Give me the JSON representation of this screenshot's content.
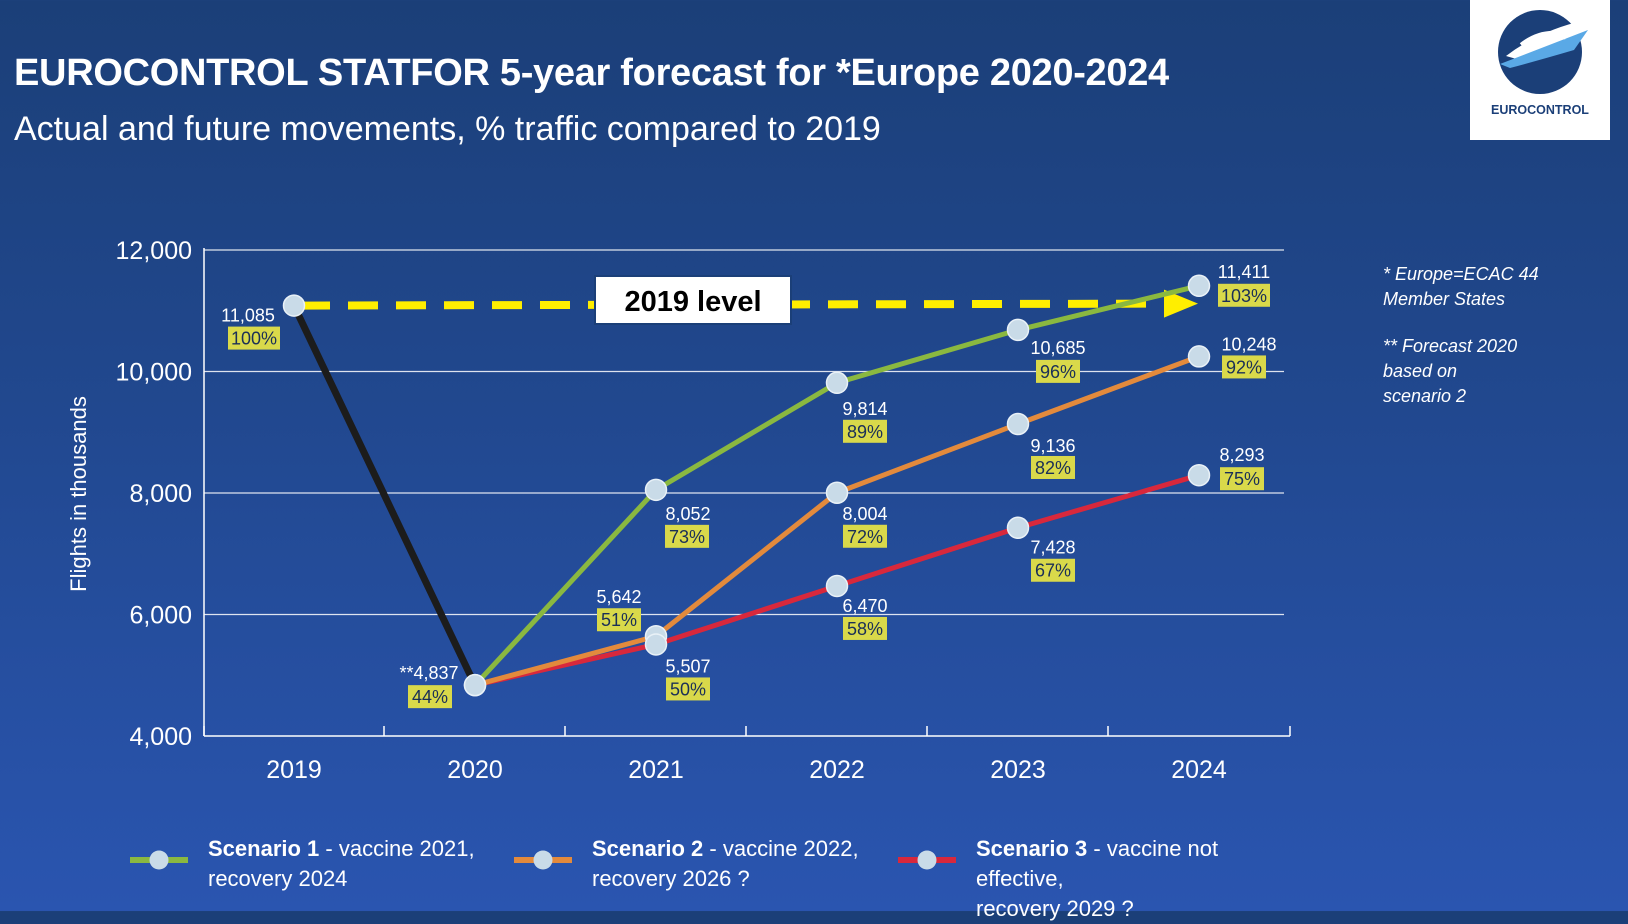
{
  "header": {
    "title": "EUROCONTROL STATFOR 5-year forecast for *Europe 2020-2024",
    "subtitle": "Actual and future movements, % traffic compared to 2019",
    "logo_text": "EUROCONTROL",
    "logo_icon": "eurocontrol-logo-icon"
  },
  "notes": [
    "* Europe=ECAC 44\n   Member States",
    "** Forecast 2020\n    based on\n    scenario 2"
  ],
  "colors": {
    "actual": "#1c1c1c",
    "scenario1": "#8ab840",
    "scenario2": "#e38a3c",
    "scenario3": "#d8283c",
    "marker": "#c9dbe8",
    "pct_box": "#d9d94a",
    "pct_text": "#1a2f57",
    "reference": "#ffee00"
  },
  "chart_data": {
    "type": "line",
    "ylabel": "Flights in thousands",
    "ylim": [
      4000,
      12000
    ],
    "yticks": [
      "12,000",
      "10,000",
      "8,000",
      "6,000",
      "4,000"
    ],
    "ytick_values": [
      12000,
      10000,
      8000,
      6000,
      4000
    ],
    "categories": [
      "2019",
      "2020",
      "2021",
      "2022",
      "2023",
      "2024"
    ],
    "reference_line": {
      "label": "2019 level",
      "value": 11085
    },
    "series": [
      {
        "key": "actual",
        "x": [
          "2019",
          "2020"
        ],
        "values": [
          11085,
          4837
        ],
        "value_labels": [
          "11,085",
          "**4,837"
        ],
        "pct_labels": [
          "100%",
          "44%"
        ]
      },
      {
        "key": "scenario1",
        "name": "Scenario 1",
        "description": "- vaccine 2021,",
        "description2": "recovery 2024",
        "x": [
          "2020",
          "2021",
          "2022",
          "2023",
          "2024"
        ],
        "values": [
          4837,
          8052,
          9814,
          10685,
          11411
        ],
        "value_labels": [
          "",
          "8,052",
          "9,814",
          "10,685",
          "11,411"
        ],
        "pct_labels": [
          "",
          "73%",
          "89%",
          "96%",
          "103%"
        ]
      },
      {
        "key": "scenario2",
        "name": "Scenario 2",
        "description": "- vaccine 2022,",
        "description2": "recovery 2026 ?",
        "x": [
          "2020",
          "2021",
          "2022",
          "2023",
          "2024"
        ],
        "values": [
          4837,
          5642,
          8004,
          9136,
          10248
        ],
        "value_labels": [
          "",
          "5,642",
          "8,004",
          "9,136",
          "10,248"
        ],
        "pct_labels": [
          "",
          "51%",
          "72%",
          "82%",
          "92%"
        ]
      },
      {
        "key": "scenario3",
        "name": "Scenario 3",
        "description": "- vaccine not effective,",
        "description2": "recovery 2029 ?",
        "x": [
          "2020",
          "2021",
          "2022",
          "2023",
          "2024"
        ],
        "values": [
          4837,
          5507,
          6470,
          7428,
          8293
        ],
        "value_labels": [
          "",
          "5,507",
          "6,470",
          "7,428",
          "8,293"
        ],
        "pct_labels": [
          "",
          "50%",
          "58%",
          "67%",
          "75%"
        ]
      }
    ]
  }
}
